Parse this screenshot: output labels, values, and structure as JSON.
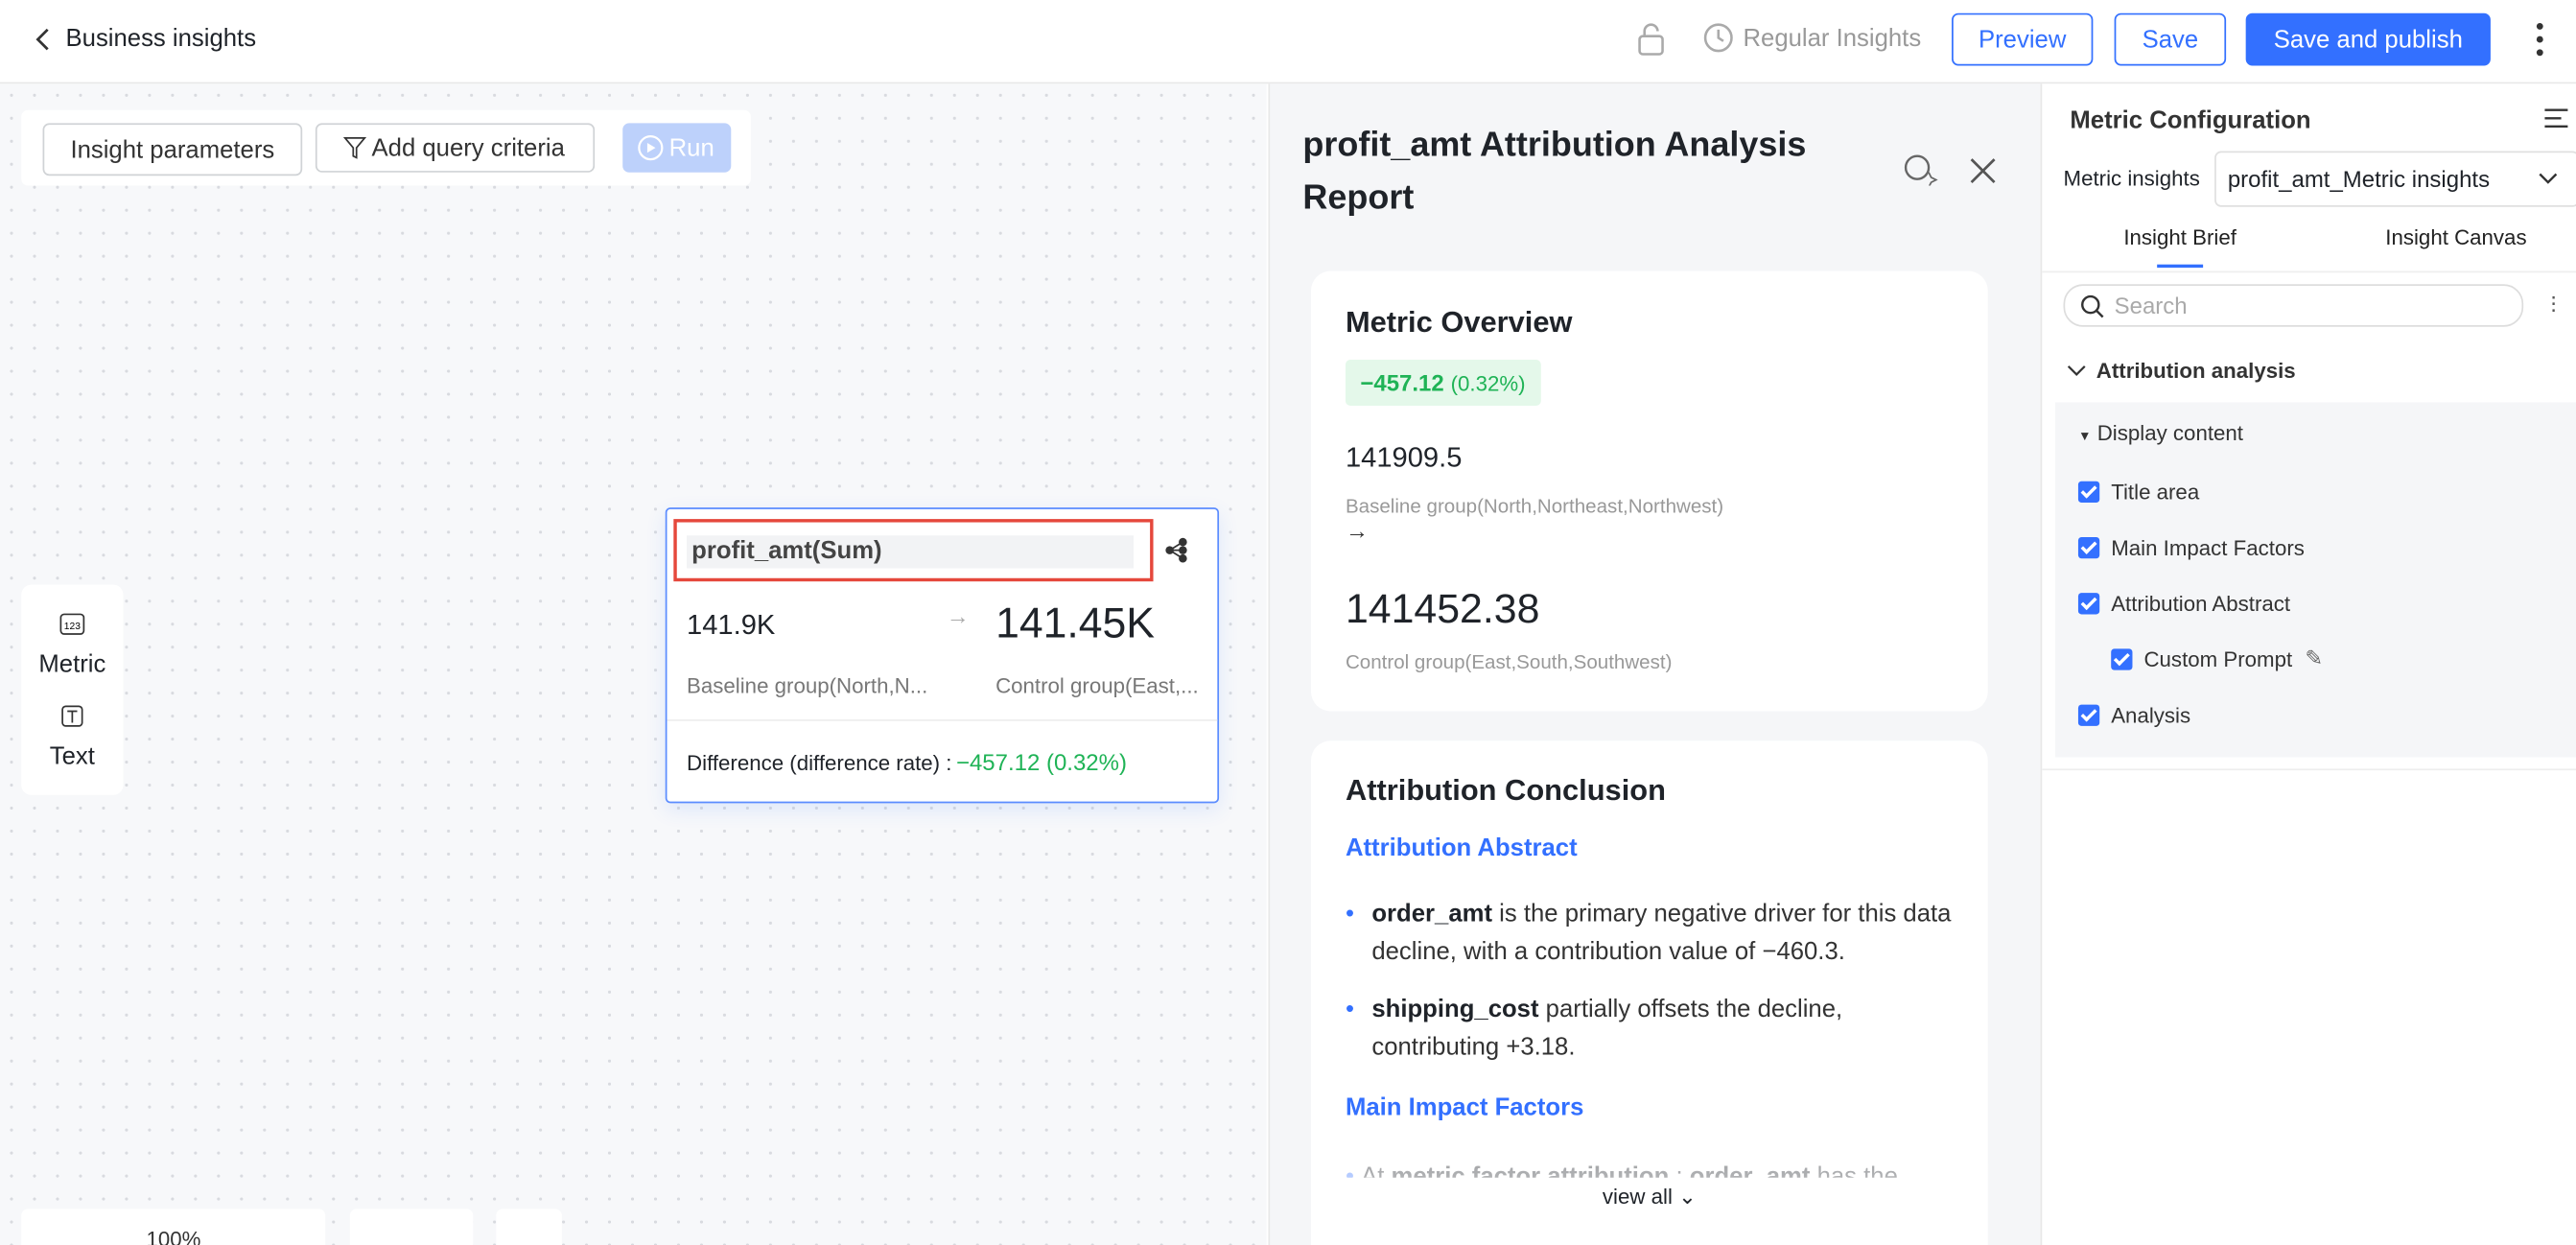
{
  "header": {
    "back_label": "Business insights",
    "regular_insights": "Regular Insights",
    "buttons": [
      "Preview",
      "Save",
      "Save and publish"
    ]
  },
  "toolbar": [
    "Insight parameters",
    "Add query criteria",
    "Run"
  ],
  "palette": [
    "Metric",
    "Text"
  ],
  "zoom": "100%",
  "card": {
    "title": "profit_amt(Sum)",
    "baseline_value": "141.9K",
    "control_value": "141.45K",
    "baseline_label": "Baseline group(North,N...",
    "control_label": "Control group(East,...",
    "difference_label": "Difference (difference rate) :",
    "difference_value": "−457.12 (0.32%)"
  },
  "report": {
    "title": "profit_amt Attribution Analysis Report",
    "overview": {
      "heading": "Metric Overview",
      "change": "−457.12",
      "change_rate": "(0.32%)",
      "baseline_value": "141909.5",
      "baseline_label": "Baseline group(North,Northeast,Northwest)",
      "control_value": "141452.38",
      "control_label": "Control group(East,South,Southwest)"
    },
    "conclusion": {
      "heading": "Attribution Conclusion",
      "abstract_heading": "Attribution Abstract",
      "bullets": [
        {
          "bold": "order_amt",
          "text": " is the primary negative driver for this data decline, with a contribution value of −460.3."
        },
        {
          "bold": "shipping_cost",
          "text": " partially offsets the decline, contributing +3.18."
        }
      ],
      "factors_heading": "Main Impact Factors",
      "factor_fragments": [
        {
          "text": "At ",
          "bold": false
        },
        {
          "text": "metric factor attribution",
          "bold": true
        },
        {
          "text": " : ",
          "bold": false
        },
        {
          "text": "order_amt",
          "bold": true
        },
        {
          "text": " has the",
          "bold": false
        }
      ]
    },
    "view_all": "view all"
  },
  "config": {
    "title": "Metric Configuration",
    "insights_label": "Metric insights",
    "insights_value": "profit_amt_Metric insights",
    "tabs": [
      "Insight Brief",
      "Insight Canvas"
    ],
    "search_placeholder": "Search",
    "section": "Attribution analysis",
    "subsection": "Display content",
    "options": [
      {
        "label": "Title area",
        "checked": true,
        "nested": false
      },
      {
        "label": "Main Impact Factors",
        "checked": true,
        "nested": false
      },
      {
        "label": "Attribution Abstract",
        "checked": true,
        "nested": false
      },
      {
        "label": "Custom Prompt",
        "checked": true,
        "nested": true
      },
      {
        "label": "Analysis",
        "checked": true,
        "nested": false
      }
    ]
  }
}
